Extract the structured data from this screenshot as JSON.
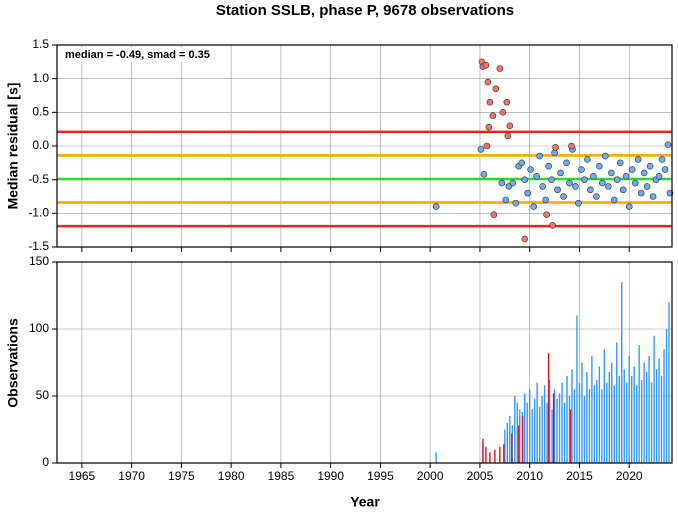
{
  "chart_data": [
    {
      "type": "scatter",
      "title": "Station SSLB, phase P, 9678 observations",
      "ylabel": "Median residual [s]",
      "annotation": "median = -0.49, smad = 0.35",
      "xlim": [
        1962.5,
        2024.3
      ],
      "xticks": [
        1965,
        1970,
        1975,
        1980,
        1985,
        1990,
        1995,
        2000,
        2005,
        2010,
        2015,
        2020
      ],
      "ylim": [
        -1.5,
        1.5
      ],
      "yticks": [
        1.5,
        {
          "value": 1,
          "label": "1.0"
        },
        0.5,
        {
          "value": 0,
          "label": "0.0"
        },
        -0.5,
        {
          "value": -1,
          "label": "-1.0"
        },
        -1.5
      ],
      "grid": true,
      "hlines": [
        {
          "value": 0.21,
          "color": "#e8232a"
        },
        {
          "value": -0.14,
          "color": "#ffa500"
        },
        {
          "value": -0.49,
          "color": "#22dd22"
        },
        {
          "value": -0.84,
          "color": "#ffa500"
        },
        {
          "value": -1.19,
          "color": "#e8232a"
        }
      ],
      "series": [
        {
          "color": "#6fa8f5",
          "x": [
            2000.6,
            2005.1,
            2005.4,
            2007.2,
            2007.6,
            2007.9,
            2008.3,
            2008.6,
            2008.9,
            2009.2,
            2009.5,
            2009.8,
            2010.1,
            2010.4,
            2010.7,
            2011.0,
            2011.3,
            2011.6,
            2011.9,
            2012.2,
            2012.5,
            2012.8,
            2013.1,
            2013.4,
            2013.7,
            2014.0,
            2014.3,
            2014.6,
            2014.9,
            2015.2,
            2015.5,
            2015.8,
            2016.1,
            2016.4,
            2016.7,
            2017.0,
            2017.3,
            2017.6,
            2017.9,
            2018.2,
            2018.5,
            2018.8,
            2019.1,
            2019.4,
            2019.7,
            2020.0,
            2020.3,
            2020.6,
            2020.9,
            2021.2,
            2021.5,
            2021.8,
            2022.1,
            2022.4,
            2022.7,
            2023.0,
            2023.3,
            2023.6,
            2023.9,
            2024.1
          ],
          "values": [
            -0.9,
            -0.05,
            -0.42,
            -0.55,
            -0.8,
            -0.6,
            -0.55,
            -0.85,
            -0.3,
            -0.25,
            -0.5,
            -0.7,
            -0.35,
            -0.9,
            -0.45,
            -0.15,
            -0.6,
            -0.8,
            -0.3,
            -0.5,
            -0.1,
            -0.65,
            -0.4,
            -0.75,
            -0.25,
            -0.55,
            -0.05,
            -0.6,
            -0.85,
            -0.35,
            -0.5,
            -0.2,
            -0.65,
            -0.45,
            -0.75,
            -0.3,
            -0.55,
            -0.15,
            -0.6,
            -0.4,
            -0.8,
            -0.5,
            -0.25,
            -0.65,
            -0.45,
            -0.9,
            -0.35,
            -0.55,
            -0.2,
            -0.7,
            -0.4,
            -0.6,
            -0.3,
            -0.75,
            -0.5,
            -0.45,
            -0.2,
            -0.35,
            0.02,
            -0.7
          ]
        },
        {
          "color": "#f4726a",
          "x": [
            2005.2,
            2005.3,
            2005.6,
            2005.8,
            2006.0,
            2005.9,
            2006.3,
            2006.6,
            2007.0,
            2007.3,
            2007.7,
            2008.0,
            2007.8,
            2006.4,
            2009.5,
            2011.7,
            2012.3,
            2012.6,
            2014.2,
            2005.7
          ],
          "values": [
            1.25,
            1.18,
            1.2,
            0.95,
            0.65,
            0.28,
            0.45,
            0.85,
            1.15,
            0.5,
            0.65,
            0.3,
            0.15,
            -1.02,
            -1.38,
            -1.02,
            -1.18,
            -0.02,
            0.0,
            0.0
          ]
        }
      ]
    },
    {
      "type": "bar",
      "ylabel": "Observations",
      "xlabel": "Year",
      "xlim": [
        1962.5,
        2024.3
      ],
      "xticks": [
        1965,
        1970,
        1975,
        1980,
        1985,
        1990,
        1995,
        2000,
        2005,
        2010,
        2015,
        2020
      ],
      "ylim": [
        0,
        150
      ],
      "yticks": [
        0,
        50,
        100,
        150
      ],
      "grid": true,
      "series": [
        {
          "color": "#3399ff",
          "x": [
            2000.6,
            2005.3,
            2007.5,
            2007.75,
            2008,
            2008.25,
            2008.5,
            2008.75,
            2009,
            2009.25,
            2009.5,
            2009.75,
            2010,
            2010.25,
            2010.5,
            2010.75,
            2011,
            2011.25,
            2011.5,
            2011.75,
            2012,
            2012.25,
            2012.5,
            2012.75,
            2013,
            2013.25,
            2013.5,
            2013.75,
            2014,
            2014.25,
            2014.5,
            2014.75,
            2015,
            2015.25,
            2015.5,
            2015.75,
            2016,
            2016.25,
            2016.5,
            2016.75,
            2017,
            2017.25,
            2017.5,
            2017.75,
            2018,
            2018.25,
            2018.5,
            2018.75,
            2019,
            2019.25,
            2019.5,
            2019.75,
            2020,
            2020.25,
            2020.5,
            2020.75,
            2021,
            2021.25,
            2021.5,
            2021.75,
            2022,
            2022.25,
            2022.5,
            2022.75,
            2023,
            2023.25,
            2023.5,
            2023.75,
            2024
          ],
          "values": [
            8,
            15,
            25,
            30,
            35,
            28,
            50,
            45,
            40,
            38,
            52,
            45,
            55,
            40,
            48,
            60,
            42,
            50,
            58,
            45,
            62,
            40,
            55,
            48,
            52,
            60,
            45,
            65,
            50,
            70,
            55,
            110,
            60,
            75,
            50,
            68,
            55,
            80,
            58,
            62,
            72,
            55,
            85,
            60,
            68,
            75,
            58,
            90,
            65,
            135,
            70,
            60,
            80,
            65,
            72,
            58,
            88,
            62,
            75,
            68,
            80,
            60,
            95,
            70,
            78,
            65,
            85,
            100,
            120
          ]
        },
        {
          "color": "#e01020",
          "x": [
            2005.3,
            2005.6,
            2006.0,
            2006.5,
            2007.0,
            2007.4,
            2008.2,
            2008.9,
            2009.3,
            2011.9,
            2012.4,
            2014.1
          ],
          "values": [
            18,
            12,
            8,
            10,
            12,
            14,
            22,
            28,
            35,
            82,
            52,
            40
          ]
        }
      ]
    }
  ]
}
